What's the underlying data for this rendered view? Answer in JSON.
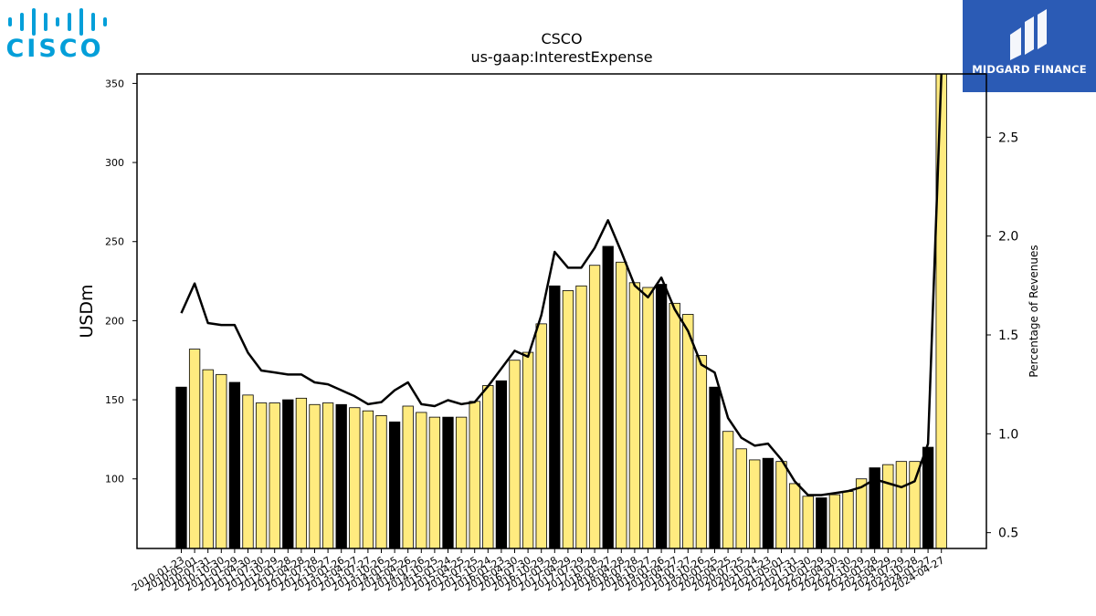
{
  "logos": {
    "left_text": "CISCO",
    "right_text": "MIDGARD FINANCE",
    "left_color": "#049fd9",
    "right_bg": "#2b5bb5"
  },
  "chart_data": {
    "type": "bar",
    "title": "CSCO",
    "subtitle": "us-gaap:InterestExpense",
    "ylabel": "USDm",
    "y2label": "Percentage of Revenues",
    "ylim": [
      56,
      356
    ],
    "y2lim": [
      0.42,
      2.82
    ],
    "yticks": [
      100,
      150,
      200,
      250,
      300,
      350
    ],
    "y2ticks": [
      0.5,
      1.0,
      1.5,
      2.0,
      2.5
    ],
    "y2tick_labels": [
      "0.5",
      "1.0",
      "1.5",
      "2.0",
      "2.5"
    ],
    "categories": [
      "2010-01-23",
      "2010-05-01",
      "2010-07-31",
      "2010-10-30",
      "2011-01-29",
      "2011-04-30",
      "2011-07-30",
      "2011-10-29",
      "2012-01-28",
      "2012-04-28",
      "2012-07-28",
      "2012-10-27",
      "2013-01-26",
      "2013-04-27",
      "2013-07-27",
      "2013-10-26",
      "2014-01-25",
      "2014-04-26",
      "2014-07-26",
      "2014-10-25",
      "2015-01-24",
      "2015-04-25",
      "2015-07-25",
      "2015-10-24",
      "2016-01-23",
      "2016-04-30",
      "2016-07-30",
      "2016-10-29",
      "2017-01-28",
      "2017-04-29",
      "2017-07-29",
      "2017-10-28",
      "2018-01-27",
      "2018-04-28",
      "2018-07-28",
      "2018-10-27",
      "2019-01-26",
      "2019-04-27",
      "2019-07-27",
      "2019-10-26",
      "2020-01-25",
      "2020-04-25",
      "2020-07-25",
      "2020-10-24",
      "2021-01-23",
      "2021-05-01",
      "2021-07-31",
      "2021-10-30",
      "2022-01-29",
      "2022-04-30",
      "2022-07-30",
      "2022-10-29",
      "2023-01-28",
      "2023-04-29",
      "2023-07-29",
      "2023-10-28",
      "2024-01-27",
      "2024-04-27"
    ],
    "bar_values": [
      158,
      182,
      169,
      166,
      161,
      153,
      148,
      148,
      150,
      151,
      147,
      148,
      147,
      145,
      143,
      140,
      136,
      146,
      142,
      139,
      139,
      139,
      149,
      159,
      162,
      175,
      180,
      198,
      222,
      219,
      222,
      235,
      247,
      237,
      224,
      221,
      223,
      211,
      204,
      178,
      158,
      130,
      119,
      112,
      113,
      111,
      97,
      89,
      88,
      90,
      92,
      100,
      107,
      109,
      111,
      111,
      120,
      356
    ],
    "fiscal_year_end": [
      true,
      false,
      false,
      false,
      true,
      false,
      false,
      false,
      true,
      false,
      false,
      false,
      true,
      false,
      false,
      false,
      true,
      false,
      false,
      false,
      true,
      false,
      false,
      false,
      true,
      false,
      false,
      false,
      true,
      false,
      false,
      false,
      true,
      false,
      false,
      false,
      true,
      false,
      false,
      false,
      true,
      false,
      false,
      false,
      true,
      false,
      false,
      false,
      true,
      false,
      false,
      false,
      true,
      false,
      false,
      false,
      true,
      false
    ],
    "line_name": "Percentage of Revenues",
    "line_values": [
      1.61,
      1.76,
      1.56,
      1.55,
      1.55,
      1.41,
      1.32,
      1.31,
      1.3,
      1.3,
      1.26,
      1.25,
      1.22,
      1.19,
      1.15,
      1.16,
      1.22,
      1.26,
      1.15,
      1.14,
      1.17,
      1.15,
      1.16,
      1.24,
      1.33,
      1.42,
      1.39,
      1.6,
      1.92,
      1.84,
      1.84,
      1.94,
      2.08,
      1.92,
      1.75,
      1.69,
      1.79,
      1.63,
      1.52,
      1.35,
      1.31,
      1.08,
      0.98,
      0.94,
      0.95,
      0.87,
      0.76,
      0.69,
      0.69,
      0.7,
      0.71,
      0.73,
      0.77,
      0.75,
      0.73,
      0.76,
      0.95,
      2.82
    ],
    "colors": {
      "bar_main": "#ffeb7f",
      "bar_highlight": "#000000",
      "line": "#000000"
    },
    "grid": false
  }
}
